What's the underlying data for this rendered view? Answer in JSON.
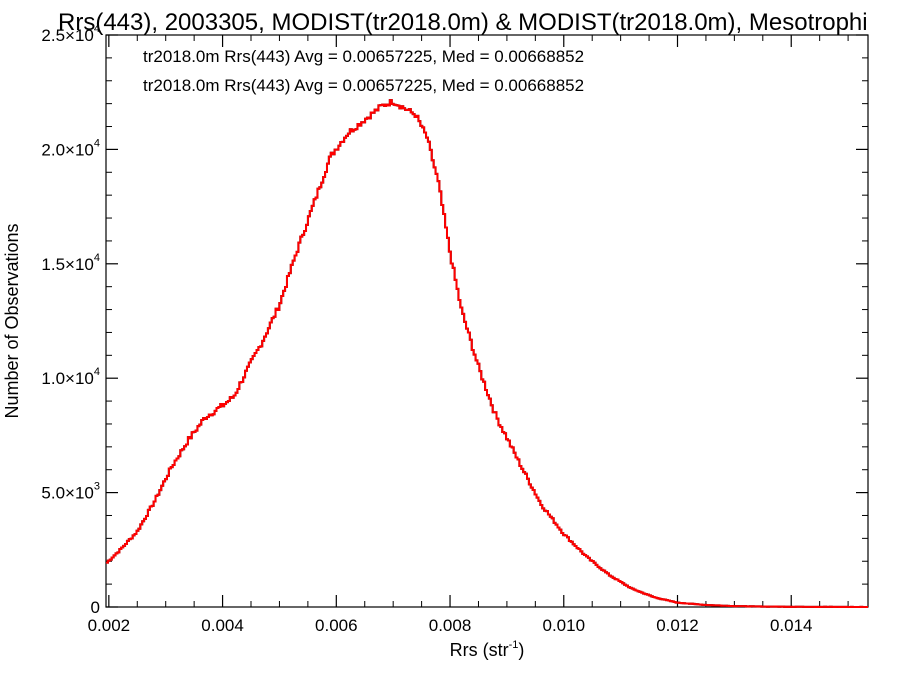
{
  "chart_data": {
    "type": "histogram",
    "title": "Rrs(443), 2003305, MODIST(tr2018.0m) & MODIST(tr2018.0m), Mesotrophi",
    "xlabel": {
      "base": "Rrs (str",
      "exp": "-1",
      "close": ")"
    },
    "ylabel": "Number of Observations",
    "xlim": [
      0.00195,
      0.01535
    ],
    "ylim": [
      0,
      25000
    ],
    "x_ticks": [
      {
        "value": 0.002,
        "label": "0.002"
      },
      {
        "value": 0.004,
        "label": "0.004"
      },
      {
        "value": 0.006,
        "label": "0.006"
      },
      {
        "value": 0.008,
        "label": "0.008"
      },
      {
        "value": 0.01,
        "label": "0.010"
      },
      {
        "value": 0.012,
        "label": "0.012"
      },
      {
        "value": 0.014,
        "label": "0.014"
      }
    ],
    "y_ticks": [
      {
        "value": 0,
        "mant": "0",
        "exp": ""
      },
      {
        "value": 5000,
        "mant": "5.0×10",
        "exp": "3"
      },
      {
        "value": 10000,
        "mant": "1.0×10",
        "exp": "4"
      },
      {
        "value": 15000,
        "mant": "1.5×10",
        "exp": "4"
      },
      {
        "value": 20000,
        "mant": "2.0×10",
        "exp": "4"
      },
      {
        "value": 25000,
        "mant": "2.5×10",
        "exp": "4"
      }
    ],
    "annotations": [
      {
        "text": "tr2018.0m Rrs(443) Avg = 0.00657225, Med = 0.00668852",
        "color": "#000000"
      },
      {
        "text": "tr2018.0m Rrs(443) Avg = 0.00657225, Med = 0.00668852",
        "color": "#ff0000"
      }
    ],
    "series": [
      {
        "color": "#000000",
        "linked": "black-series"
      },
      {
        "color": "#ff0000",
        "linked": "red-series"
      }
    ],
    "profile": [
      [
        0.00195,
        1900
      ],
      [
        0.0022,
        2500
      ],
      [
        0.0025,
        3300
      ],
      [
        0.0028,
        4600
      ],
      [
        0.0031,
        6100
      ],
      [
        0.0034,
        7300
      ],
      [
        0.0037,
        8300
      ],
      [
        0.004,
        8800
      ],
      [
        0.0042,
        9200
      ],
      [
        0.0044,
        10200
      ],
      [
        0.0047,
        11600
      ],
      [
        0.005,
        13200
      ],
      [
        0.0053,
        15500
      ],
      [
        0.0056,
        17600
      ],
      [
        0.0059,
        19700
      ],
      [
        0.0062,
        20700
      ],
      [
        0.0065,
        21300
      ],
      [
        0.0068,
        21900
      ],
      [
        0.007,
        22100
      ],
      [
        0.0072,
        21800
      ],
      [
        0.0074,
        21500
      ],
      [
        0.0076,
        20500
      ],
      [
        0.0078,
        18500
      ],
      [
        0.008,
        15500
      ],
      [
        0.0082,
        13000
      ],
      [
        0.0085,
        10500
      ],
      [
        0.0088,
        8400
      ],
      [
        0.0092,
        6400
      ],
      [
        0.0096,
        4500
      ],
      [
        0.01,
        3200
      ],
      [
        0.0104,
        2200
      ],
      [
        0.0108,
        1400
      ],
      [
        0.0112,
        800
      ],
      [
        0.0116,
        420
      ],
      [
        0.012,
        190
      ],
      [
        0.0125,
        90
      ],
      [
        0.013,
        40
      ],
      [
        0.0135,
        20
      ],
      [
        0.014,
        10
      ],
      [
        0.0153,
        0
      ]
    ],
    "bin_width": 3.35e-05,
    "grid": false
  }
}
